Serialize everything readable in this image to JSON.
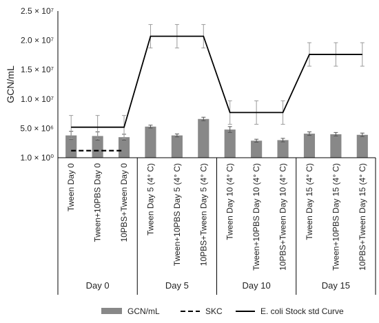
{
  "chart_data": {
    "type": "bar",
    "ylabel": "GCN/mL",
    "ylim": [
      0,
      25000000
    ],
    "y_ticks": [
      {
        "value": 1,
        "label": "1.0 × 10⁰"
      },
      {
        "value": 5000000,
        "label": "5.0 × 10⁶"
      },
      {
        "value": 10000000,
        "label": "1.0 × 10⁷"
      },
      {
        "value": 15000000,
        "label": "1.5 × 10⁷"
      },
      {
        "value": 20000000,
        "label": "2.0 × 10⁷"
      },
      {
        "value": 25000000,
        "label": "2.5 × 10⁷"
      }
    ],
    "categories": [
      "Tween Day 0",
      "Tween+10PBS Day 0",
      "10PBS+Tween Day 0",
      "Tween Day 5 (4° C)",
      "Tween+10PBS Day 5 (4° C)",
      "10PBS+Tween Day 5 (4° C)",
      "Tween Day 10 (4° C)",
      "Tween+10PBS Day 10 (4° C)",
      "10PBS+Tween Day 10 (4° C)",
      "Tween Day 15 (4° C)",
      "Tween+10PBS Day 15 (4° C)",
      "10PBS+Tween Day 15 (4° C)"
    ],
    "groups": [
      {
        "label": "Day 0",
        "start": 0,
        "count": 3
      },
      {
        "label": "Day 5",
        "start": 3,
        "count": 3
      },
      {
        "label": "Day 10",
        "start": 6,
        "count": 3
      },
      {
        "label": "Day 15",
        "start": 9,
        "count": 3
      }
    ],
    "series": [
      {
        "name": "GCN/mL",
        "kind": "bar",
        "color": "#888888",
        "values": [
          3800000,
          3700000,
          3500000,
          5300000,
          3800000,
          6600000,
          4800000,
          2900000,
          3000000,
          4100000,
          4000000,
          3900000
        ],
        "errors": [
          700000,
          700000,
          500000,
          250000,
          250000,
          300000,
          500000,
          250000,
          300000,
          300000,
          300000,
          300000
        ]
      },
      {
        "name": "SKC",
        "kind": "dashed-line",
        "color": "#000000",
        "values": [
          1200000,
          1200000,
          1200000,
          null,
          null,
          null,
          null,
          null,
          null,
          null,
          null,
          null
        ]
      },
      {
        "name": "E. coli Stock std Curve",
        "kind": "line",
        "color": "#000000",
        "values": [
          5200000,
          5200000,
          5200000,
          20700000,
          20700000,
          20700000,
          7700000,
          7700000,
          7700000,
          17600000,
          17600000,
          17600000
        ],
        "errors": [
          2000000,
          2000000,
          2000000,
          2000000,
          2000000,
          2000000,
          2000000,
          2000000,
          2000000,
          2000000,
          2000000,
          2000000
        ]
      }
    ],
    "grid": false,
    "legend_position": "bottom"
  }
}
